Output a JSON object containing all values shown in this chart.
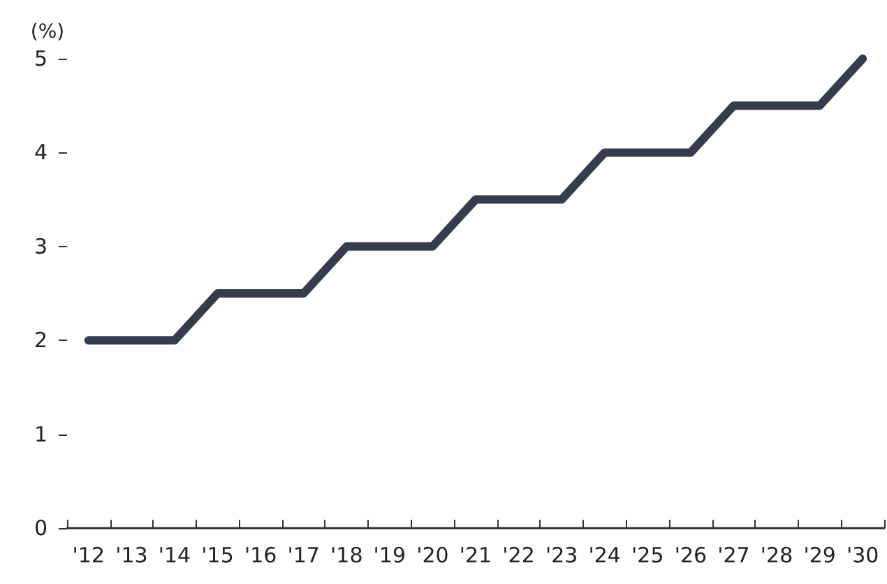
{
  "chart_data": {
    "type": "line",
    "ylabel": "(%)",
    "categories": [
      "'12",
      "'13",
      "'14",
      "'15",
      "'16",
      "'17",
      "'18",
      "'19",
      "'20",
      "'21",
      "'22",
      "'23",
      "'24",
      "'25",
      "'26",
      "'27",
      "'28",
      "'29",
      "'30"
    ],
    "series": [
      {
        "color": "#343c4e",
        "values": [
          2,
          2,
          2,
          2.5,
          2.5,
          2.5,
          3,
          3,
          3,
          3.5,
          3.5,
          3.5,
          4,
          4,
          4,
          4.5,
          4.5,
          4.5,
          5
        ]
      }
    ],
    "ylim": [
      0,
      5
    ],
    "yticks": [
      0,
      1,
      2,
      3,
      4,
      5
    ],
    "grid": false,
    "marker": "none",
    "line_style": "solid"
  }
}
